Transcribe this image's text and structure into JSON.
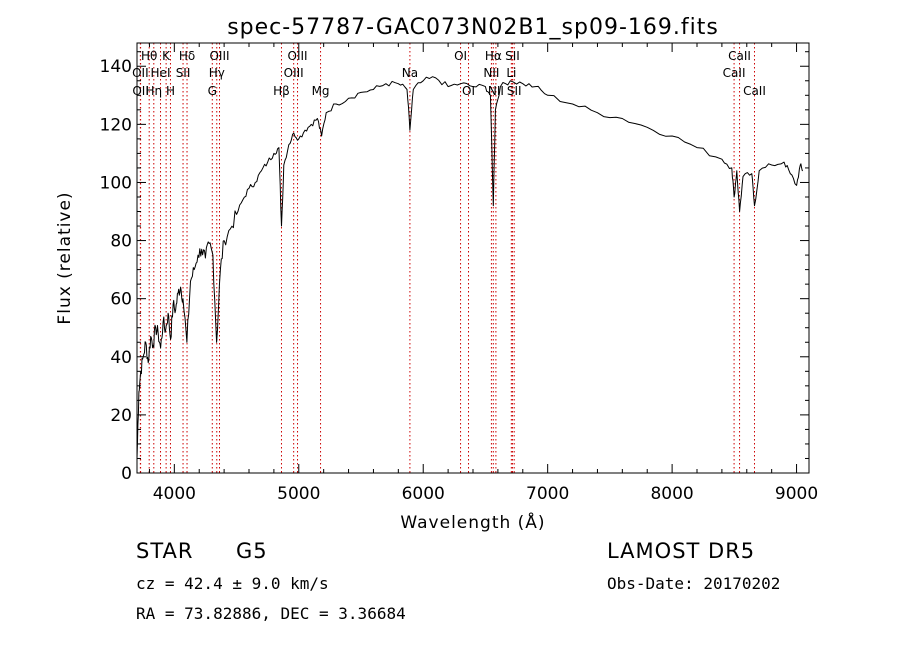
{
  "chart_data": {
    "type": "line",
    "title": "spec-57787-GAC073N02B1_sp09-169.fits",
    "xlabel": "Wavelength (Å)",
    "ylabel": "Flux (relative)",
    "xlim": [
      3700,
      9100
    ],
    "ylim": [
      0,
      148
    ],
    "xticks": [
      4000,
      5000,
      6000,
      7000,
      8000,
      9000
    ],
    "yticks": [
      0,
      20,
      40,
      60,
      80,
      100,
      120,
      140
    ],
    "line_color": "#000000",
    "marker_color": "#cc0000",
    "series": [
      {
        "points": [
          [
            3700,
            5
          ],
          [
            3715,
            28
          ],
          [
            3730,
            35
          ],
          [
            3750,
            40
          ],
          [
            3770,
            45
          ],
          [
            3790,
            38
          ],
          [
            3810,
            47
          ],
          [
            3830,
            44
          ],
          [
            3850,
            50
          ],
          [
            3870,
            48
          ],
          [
            3890,
            43
          ],
          [
            3910,
            52
          ],
          [
            3930,
            49
          ],
          [
            3950,
            55
          ],
          [
            3970,
            46
          ],
          [
            3990,
            58
          ],
          [
            4010,
            56
          ],
          [
            4030,
            62
          ],
          [
            4050,
            64
          ],
          [
            4070,
            60
          ],
          [
            4101,
            45
          ],
          [
            4130,
            66
          ],
          [
            4160,
            70
          ],
          [
            4190,
            75
          ],
          [
            4220,
            77
          ],
          [
            4250,
            74
          ],
          [
            4280,
            79
          ],
          [
            4310,
            75
          ],
          [
            4340,
            45
          ],
          [
            4370,
            70
          ],
          [
            4400,
            80
          ],
          [
            4450,
            84
          ],
          [
            4500,
            89
          ],
          [
            4550,
            94
          ],
          [
            4600,
            98
          ],
          [
            4650,
            100
          ],
          [
            4700,
            104
          ],
          [
            4750,
            107
          ],
          [
            4800,
            110
          ],
          [
            4840,
            112
          ],
          [
            4861,
            85
          ],
          [
            4880,
            106
          ],
          [
            4920,
            113
          ],
          [
            4960,
            117
          ],
          [
            5000,
            115
          ],
          [
            5050,
            118
          ],
          [
            5100,
            120
          ],
          [
            5150,
            122
          ],
          [
            5183,
            116
          ],
          [
            5220,
            124
          ],
          [
            5300,
            127
          ],
          [
            5400,
            129
          ],
          [
            5500,
            131
          ],
          [
            5600,
            132
          ],
          [
            5700,
            134
          ],
          [
            5800,
            134
          ],
          [
            5870,
            132
          ],
          [
            5893,
            118
          ],
          [
            5920,
            132
          ],
          [
            6000,
            135
          ],
          [
            6100,
            136
          ],
          [
            6200,
            133
          ],
          [
            6300,
            134
          ],
          [
            6400,
            133
          ],
          [
            6500,
            133
          ],
          [
            6540,
            130
          ],
          [
            6563,
            92
          ],
          [
            6580,
            125
          ],
          [
            6620,
            133
          ],
          [
            6700,
            135
          ],
          [
            6800,
            134
          ],
          [
            6900,
            133
          ],
          [
            7000,
            130
          ],
          [
            7200,
            127
          ],
          [
            7400,
            124
          ],
          [
            7600,
            122
          ],
          [
            7800,
            119
          ],
          [
            8000,
            116
          ],
          [
            8200,
            112
          ],
          [
            8400,
            108
          ],
          [
            8480,
            105
          ],
          [
            8498,
            95
          ],
          [
            8520,
            104
          ],
          [
            8542,
            90
          ],
          [
            8570,
            102
          ],
          [
            8640,
            103
          ],
          [
            8662,
            92
          ],
          [
            8700,
            104
          ],
          [
            8800,
            106
          ],
          [
            8900,
            107
          ],
          [
            8950,
            103
          ],
          [
            9000,
            99
          ],
          [
            9030,
            106
          ],
          [
            9050,
            104
          ]
        ]
      }
    ],
    "annotations": [
      {
        "label": "Hθ",
        "x": 3798,
        "row": 0
      },
      {
        "label": "OII",
        "x": 3727,
        "row": 1
      },
      {
        "label": "OII",
        "x": 3729,
        "row": 2
      },
      {
        "label": "K",
        "x": 3934,
        "row": 0
      },
      {
        "label": "HeI",
        "x": 3889,
        "row": 1
      },
      {
        "label": "Hη",
        "x": 3835,
        "row": 2
      },
      {
        "label": "Hδ",
        "x": 4102,
        "row": 0
      },
      {
        "label": "SII",
        "x": 4070,
        "row": 1
      },
      {
        "label": "H",
        "x": 3969,
        "row": 2
      },
      {
        "label": "OIII",
        "x": 4363,
        "row": 0
      },
      {
        "label": "Hγ",
        "x": 4341,
        "row": 1
      },
      {
        "label": "G",
        "x": 4305,
        "row": 2
      },
      {
        "label": "OIII",
        "x": 4990,
        "row": 0
      },
      {
        "label": "OIII",
        "x": 4959,
        "row": 1
      },
      {
        "label": "Hβ",
        "x": 4861,
        "row": 2
      },
      {
        "label": "Mg",
        "x": 5175,
        "row": 2
      },
      {
        "label": "Na",
        "x": 5893,
        "row": 1
      },
      {
        "label": "OI",
        "x": 6300,
        "row": 0
      },
      {
        "label": "OI",
        "x": 6364,
        "row": 2
      },
      {
        "label": "Hα",
        "x": 6563,
        "row": 0
      },
      {
        "label": "NII",
        "x": 6548,
        "row": 1
      },
      {
        "label": "NII",
        "x": 6584,
        "row": 2
      },
      {
        "label": "SII",
        "x": 6717,
        "row": 0
      },
      {
        "label": "Li",
        "x": 6708,
        "row": 1
      },
      {
        "label": "SII",
        "x": 6731,
        "row": 2
      },
      {
        "label": "CaII",
        "x": 8542,
        "row": 0
      },
      {
        "label": "CaII",
        "x": 8498,
        "row": 1
      },
      {
        "label": "CaII",
        "x": 8662,
        "row": 2
      }
    ]
  },
  "info": {
    "object_class": "STAR",
    "subclass": "G5",
    "survey": "LAMOST DR5",
    "redshift_text": "cz = 42.4 ± 9.0 km/s",
    "obs_date": "Obs-Date: 20170202",
    "coords": "RA =  73.82886, DEC =   3.36684"
  }
}
